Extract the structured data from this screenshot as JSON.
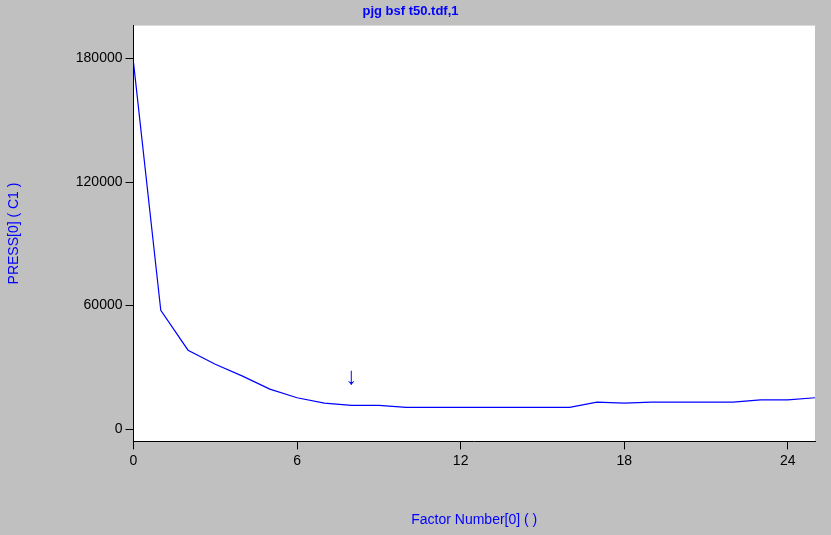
{
  "chart_data": {
    "type": "line",
    "title": "pjg bsf t50.tdf,1",
    "x_label": "Factor Number[0] ( )",
    "y_label": "PRESS[0] ( C1 )",
    "x": [
      0,
      1,
      2,
      3,
      4,
      5,
      6,
      7,
      8,
      9,
      10,
      11,
      12,
      13,
      14,
      15,
      16,
      17,
      18,
      19,
      20,
      21,
      22,
      23,
      24,
      25
    ],
    "series": [
      {
        "name": "PRESS[0]",
        "color": "#0000ff",
        "line_style": "solid",
        "marker": "none",
        "values": [
          178000,
          57700,
          38300,
          31500,
          25700,
          19400,
          15200,
          12600,
          11500,
          11500,
          10500,
          10500,
          10500,
          10500,
          10500,
          10500,
          10500,
          13100,
          12600,
          13100,
          13100,
          13100,
          13100,
          14200,
          14200,
          15200
        ]
      }
    ],
    "xlim": [
      0,
      25
    ],
    "xticks": [
      0,
      6,
      12,
      18,
      24
    ],
    "ylim": [
      -6000,
      196000
    ],
    "yticks": [
      0,
      60000,
      120000,
      180000
    ],
    "grid": false,
    "annotations": [
      {
        "x": 8,
        "y": 19500,
        "text": "↓"
      }
    ]
  }
}
